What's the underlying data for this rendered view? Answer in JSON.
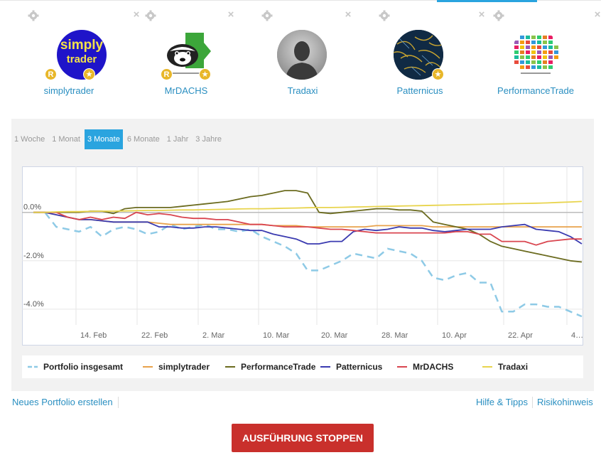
{
  "traders": [
    {
      "name": "simplytrader",
      "avatar_text_1": "simply",
      "avatar_text_2": "trader",
      "badges": [
        "R",
        "★"
      ]
    },
    {
      "name": "MrDACHS",
      "badges": [
        "R",
        "★"
      ]
    },
    {
      "name": "Tradaxi",
      "badges": []
    },
    {
      "name": "Patternicus",
      "badges": [
        "★"
      ]
    },
    {
      "name": "PerformanceTrade",
      "badges": []
    }
  ],
  "icons": {
    "settings": "gear-icon",
    "remove": "close-icon",
    "badge_r": "r-badge-icon",
    "badge_star": "star-badge-icon"
  },
  "close_glyph": "×",
  "tabs": [
    {
      "label": "1 Woche",
      "active": false
    },
    {
      "label": "1 Monat",
      "active": false
    },
    {
      "label": "3 Monate",
      "active": true
    },
    {
      "label": "6 Monate",
      "active": false
    },
    {
      "label": "1 Jahr",
      "active": false
    },
    {
      "label": "3 Jahre",
      "active": false
    }
  ],
  "chart_data": {
    "type": "line",
    "x_ticks": [
      "14. Feb",
      "22. Feb",
      "2. Mar",
      "10. Mar",
      "20. Mar",
      "28. Mar",
      "10. Apr",
      "22. Apr",
      "4…"
    ],
    "y_ticks": [
      "0.0%",
      "-2.0%",
      "-4.0%"
    ],
    "y_tick_values": [
      0,
      -2,
      -4
    ],
    "ylim": [
      -5.5,
      1.9
    ],
    "grid": true,
    "legend_position": "bottom",
    "series": [
      {
        "name": "Portfolio insgesamt",
        "color": "#8ecae6",
        "dashed": true,
        "values": [
          0,
          0,
          -0.6,
          -0.7,
          -0.8,
          -0.6,
          -1.0,
          -0.7,
          -0.6,
          -0.7,
          -0.9,
          -0.8,
          -0.5,
          -0.7,
          -0.6,
          -0.5,
          -0.7,
          -0.7,
          -0.8,
          -0.7,
          -1.0,
          -1.2,
          -1.4,
          -1.7,
          -2.4,
          -2.4,
          -2.2,
          -2.0,
          -1.7,
          -1.8,
          -1.9,
          -1.5,
          -1.6,
          -1.7,
          -2.0,
          -2.7,
          -2.8,
          -2.6,
          -2.5,
          -2.9,
          -2.9,
          -4.1,
          -4.1,
          -3.8,
          -3.8,
          -3.9,
          -3.9,
          -4.1,
          -4.3
        ]
      },
      {
        "name": "simplytrader",
        "color": "#e8a24b",
        "values": [
          0,
          0,
          -0.1,
          -0.2,
          -0.3,
          -0.3,
          -0.35,
          -0.4,
          -0.4,
          -0.4,
          -0.4,
          -0.45,
          -0.5,
          -0.5,
          -0.5,
          -0.5,
          -0.5,
          -0.5,
          -0.5,
          -0.5,
          -0.5,
          -0.55,
          -0.55,
          -0.55,
          -0.6,
          -0.6,
          -0.6,
          -0.6,
          -0.6,
          -0.6,
          -0.55,
          -0.55,
          -0.55,
          -0.55,
          -0.55,
          -0.6,
          -0.6,
          -0.6,
          -0.6,
          -0.6,
          -0.6,
          -0.6,
          -0.6,
          -0.6,
          -0.6,
          -0.6,
          -0.6,
          -0.6,
          -0.6
        ]
      },
      {
        "name": "PerformanceTrade",
        "color": "#6b6b1f",
        "values": [
          0,
          0,
          0,
          0,
          0,
          0.05,
          0.05,
          -0.05,
          0.15,
          0.2,
          0.2,
          0.2,
          0.2,
          0.25,
          0.3,
          0.35,
          0.4,
          0.45,
          0.55,
          0.65,
          0.7,
          0.8,
          0.9,
          0.9,
          0.8,
          0.0,
          -0.05,
          0.0,
          0.05,
          0.1,
          0.15,
          0.15,
          0.1,
          0.1,
          0.05,
          -0.4,
          -0.5,
          -0.6,
          -0.7,
          -0.9,
          -1.2,
          -1.4,
          -1.5,
          -1.6,
          -1.7,
          -1.8,
          -1.9,
          -2.0,
          -2.05
        ]
      },
      {
        "name": "Patternicus",
        "color": "#3a3ab0",
        "values": [
          0,
          0,
          -0.1,
          -0.2,
          -0.3,
          -0.3,
          -0.35,
          -0.4,
          -0.4,
          -0.4,
          -0.4,
          -0.6,
          -0.6,
          -0.65,
          -0.65,
          -0.6,
          -0.6,
          -0.65,
          -0.7,
          -0.75,
          -0.75,
          -0.9,
          -1.0,
          -1.1,
          -1.3,
          -1.3,
          -1.2,
          -1.2,
          -0.8,
          -0.7,
          -0.75,
          -0.7,
          -0.6,
          -0.65,
          -0.65,
          -0.75,
          -0.8,
          -0.75,
          -0.7,
          -0.7,
          -0.7,
          -0.6,
          -0.55,
          -0.5,
          -0.7,
          -0.75,
          -0.8,
          -1.0,
          -1.3
        ]
      },
      {
        "name": "MrDACHS",
        "color": "#d9454f",
        "values": [
          0,
          0,
          0,
          -0.2,
          -0.3,
          -0.2,
          -0.3,
          -0.2,
          -0.25,
          0.0,
          -0.1,
          -0.05,
          -0.1,
          -0.2,
          -0.25,
          -0.25,
          -0.3,
          -0.3,
          -0.4,
          -0.5,
          -0.5,
          -0.55,
          -0.6,
          -0.6,
          -0.6,
          -0.65,
          -0.7,
          -0.7,
          -0.75,
          -0.8,
          -0.85,
          -0.85,
          -0.85,
          -0.85,
          -0.85,
          -0.85,
          -0.85,
          -0.8,
          -0.8,
          -0.9,
          -0.9,
          -1.2,
          -1.2,
          -1.2,
          -1.35,
          -1.2,
          -1.15,
          -1.1,
          -1.1
        ]
      },
      {
        "name": "Tradaxi",
        "color": "#e8d44d",
        "values": [
          0,
          0,
          0.02,
          0.03,
          0.03,
          0.04,
          0.05,
          0.05,
          0.06,
          0.07,
          0.08,
          0.08,
          0.09,
          0.1,
          0.1,
          0.11,
          0.12,
          0.13,
          0.14,
          0.15,
          0.15,
          0.16,
          0.17,
          0.18,
          0.19,
          0.2,
          0.2,
          0.21,
          0.22,
          0.23,
          0.24,
          0.25,
          0.26,
          0.27,
          0.28,
          0.29,
          0.3,
          0.31,
          0.32,
          0.33,
          0.34,
          0.35,
          0.36,
          0.37,
          0.38,
          0.39,
          0.41,
          0.43,
          0.45
        ]
      }
    ]
  },
  "footer": {
    "new_portfolio": "Neues Portfolio erstellen",
    "help": "Hilfe & Tipps",
    "risk": "Risikohinweis",
    "stop_button": "AUSFÜHRUNG STOPPEN"
  }
}
